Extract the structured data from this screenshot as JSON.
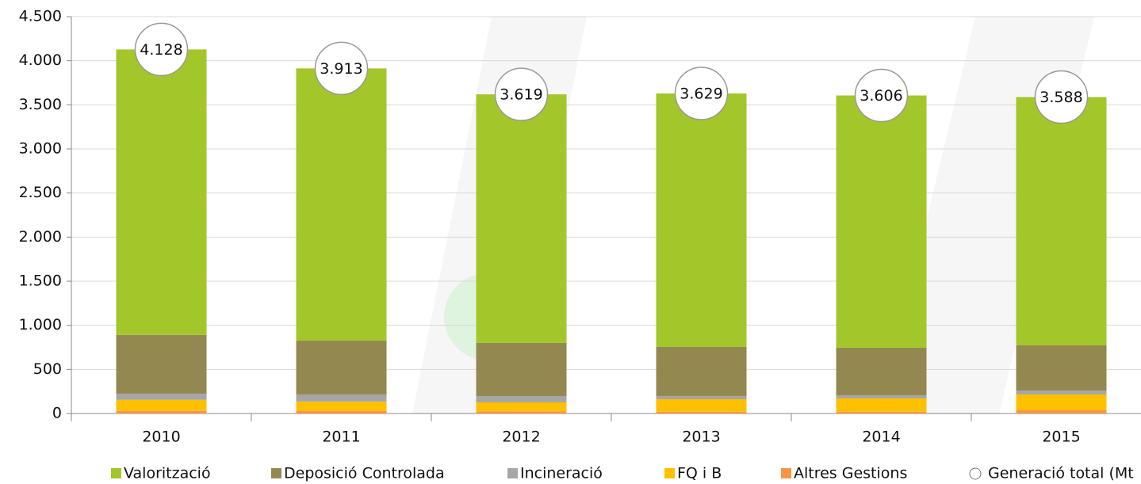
{
  "chart_data": {
    "type": "stacked_bar",
    "categories": [
      "2010",
      "2011",
      "2012",
      "2013",
      "2014",
      "2015"
    ],
    "series": [
      {
        "name": "Valorització",
        "color": "#a3c62b",
        "values": [
          3238,
          3087,
          2819,
          2874,
          2860,
          2815
        ]
      },
      {
        "name": "Deposició Controlada",
        "color": "#948851",
        "values": [
          665,
          610,
          602,
          557,
          539,
          512
        ]
      },
      {
        "name": "Incineració",
        "color": "#a6a6a6",
        "values": [
          70,
          80,
          72,
          36,
          36,
          45
        ]
      },
      {
        "name": "FQ i B",
        "color": "#ffc000",
        "values": [
          125,
          106,
          101,
          142,
          151,
          176
        ]
      },
      {
        "name": "Altres Gestions",
        "color": "#f79646",
        "values": [
          30,
          30,
          25,
          20,
          20,
          40
        ]
      }
    ],
    "total": {
      "name": "Generació total (Mt",
      "values": [
        4128,
        3913,
        3619,
        3629,
        3606,
        3588
      ],
      "value_labels": [
        "4.128",
        "3.913",
        "3.619",
        "3.629",
        "3.606",
        "3.588"
      ]
    },
    "ylim": [
      0,
      4500
    ],
    "yticks": [
      0,
      500,
      {
        "value": 1000,
        "label": "1.000"
      },
      {
        "value": 1500,
        "label": "1.500"
      },
      {
        "value": 2000,
        "label": "2.000"
      },
      {
        "value": 2500,
        "label": "2.500"
      },
      {
        "value": 3000,
        "label": "3.000"
      },
      {
        "value": 3500,
        "label": "3.500"
      },
      {
        "value": 4000,
        "label": "4.000"
      },
      {
        "value": 4500,
        "label": "4.500"
      }
    ],
    "grid": true
  }
}
